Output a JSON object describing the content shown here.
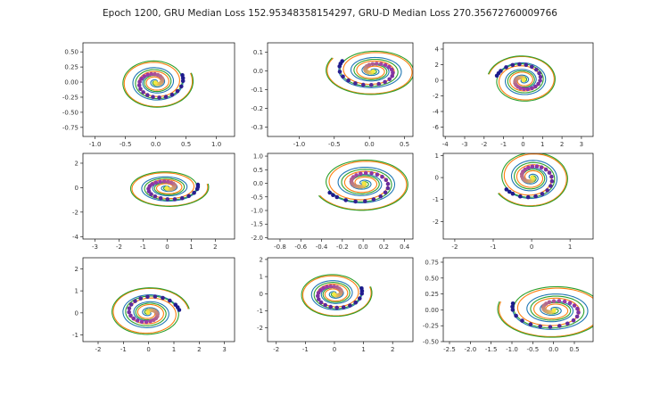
{
  "figure": {
    "title": "Epoch 1200, GRU Median Loss 152.95348358154297, GRU-D Median Loss 270.35672760009766"
  },
  "colors": {
    "truth": "#1f77b4",
    "gru": "#ff7f0e",
    "grud": "#2ca02c",
    "points_start": "#1a1a8c",
    "points_mid": "#9d3aa8",
    "points_end": "#f4e842"
  },
  "chart_data": [
    {
      "type": "line",
      "panel": "1-1",
      "xlim": [
        -1.2,
        1.3
      ],
      "ylim": [
        -0.9,
        0.65
      ],
      "x_ticks": [
        -1.0,
        -0.5,
        0.0,
        0.5,
        1.0
      ],
      "y_ticks": [
        0.5,
        0.25,
        0.0,
        -0.25,
        -0.5,
        -0.75
      ],
      "x_tick_labels": [
        "-1.0",
        "-0.5",
        "0.0",
        "0.5",
        "1.0"
      ],
      "y_tick_labels": [
        "0.50",
        "0.25",
        "0.00",
        "-0.25",
        "-0.50",
        "-0.75"
      ],
      "spiral": {
        "cx": 0.0,
        "cy": 0.0,
        "a": 1.15,
        "b": 0.82,
        "dir": -1,
        "phase": 0.35
      }
    },
    {
      "type": "line",
      "panel": "1-2",
      "xlim": [
        -1.45,
        0.62
      ],
      "ylim": [
        -0.35,
        0.15
      ],
      "x_ticks": [
        -1.0,
        -0.5,
        0.0,
        0.5
      ],
      "y_ticks": [
        0.1,
        0.0,
        -0.1,
        -0.2,
        -0.3
      ],
      "x_tick_labels": [
        "-1.0",
        "-0.5",
        "0.0",
        "0.5"
      ],
      "y_tick_labels": [
        "0.1",
        "0.0",
        "-0.1",
        "-0.2",
        "-0.3"
      ],
      "spiral": {
        "cx": 0.05,
        "cy": 0.0,
        "a": 1.25,
        "b": 0.25,
        "dir": 1,
        "phase": 2.6
      }
    },
    {
      "type": "line",
      "panel": "1-3",
      "xlim": [
        -4.1,
        3.6
      ],
      "ylim": [
        -7.2,
        4.8
      ],
      "x_ticks": [
        -4,
        -3,
        -2,
        -1,
        0,
        1,
        2,
        3
      ],
      "y_ticks": [
        4,
        2,
        0,
        -2,
        -4,
        -6
      ],
      "x_tick_labels": [
        "-4",
        "-3",
        "-2",
        "-1",
        "0",
        "1",
        "2",
        "3"
      ],
      "y_tick_labels": [
        "4",
        "2",
        "0",
        "-2",
        "-4",
        "-6"
      ],
      "spiral": {
        "cx": 0.0,
        "cy": 0.0,
        "a": 3.4,
        "b": 6.0,
        "dir": -1,
        "phase": 2.9
      }
    },
    {
      "type": "line",
      "panel": "2-1",
      "xlim": [
        -3.5,
        2.8
      ],
      "ylim": [
        -4.2,
        2.8
      ],
      "x_ticks": [
        -3,
        -2,
        -1,
        0,
        1,
        2
      ],
      "y_ticks": [
        2,
        0,
        -2,
        -4
      ],
      "x_tick_labels": [
        "-3",
        "-2",
        "-1",
        "0",
        "1",
        "2"
      ],
      "y_tick_labels": [
        "2",
        "0",
        "-2",
        "-4"
      ],
      "spiral": {
        "cx": 0.0,
        "cy": 0.0,
        "a": 3.2,
        "b": 3.0,
        "dir": -1,
        "phase": 0.2
      }
    },
    {
      "type": "line",
      "panel": "2-2",
      "xlim": [
        -0.92,
        0.48
      ],
      "ylim": [
        -2.05,
        1.1
      ],
      "x_ticks": [
        -0.8,
        -0.6,
        -0.4,
        -0.2,
        0.0,
        0.2,
        0.4
      ],
      "y_ticks": [
        1.0,
        0.5,
        0.0,
        -0.5,
        -1.0,
        -1.5,
        -2.0
      ],
      "x_tick_labels": [
        "-0.8",
        "-0.6",
        "-0.4",
        "-0.2",
        "0.0",
        "0.2",
        "0.4"
      ],
      "y_tick_labels": [
        "1.0",
        "0.5",
        "0.0",
        "-0.5",
        "-1.0",
        "-1.5",
        "-2.0"
      ],
      "spiral": {
        "cx": 0.0,
        "cy": 0.0,
        "a": 0.88,
        "b": 1.9,
        "dir": 1,
        "phase": 3.6
      }
    },
    {
      "type": "line",
      "panel": "2-3",
      "xlim": [
        -2.3,
        1.6
      ],
      "ylim": [
        -2.8,
        1.1
      ],
      "x_ticks": [
        -2,
        -1,
        0,
        1
      ],
      "y_ticks": [
        1,
        0,
        -1,
        -2
      ],
      "x_tick_labels": [
        "-2",
        "-1",
        "0",
        "1"
      ],
      "y_tick_labels": [
        "1",
        "0",
        "-1",
        "-2"
      ],
      "spiral": {
        "cx": 0.0,
        "cy": 0.0,
        "a": 1.9,
        "b": 2.5,
        "dir": 1,
        "phase": 3.7
      }
    },
    {
      "type": "line",
      "panel": "3-1",
      "xlim": [
        -2.6,
        3.4
      ],
      "ylim": [
        -1.3,
        2.5
      ],
      "x_ticks": [
        -2,
        -1,
        0,
        1,
        2,
        3
      ],
      "y_ticks": [
        2,
        1,
        0,
        -1
      ],
      "x_tick_labels": [
        "-2",
        "-1",
        "0",
        "1",
        "2",
        "3"
      ],
      "y_tick_labels": [
        "2",
        "1",
        "0",
        "-1"
      ],
      "spiral": {
        "cx": 0.0,
        "cy": 0.0,
        "a": 3.0,
        "b": 2.2,
        "dir": 1,
        "phase": 0.15
      }
    },
    {
      "type": "line",
      "panel": "3-2",
      "xlim": [
        -2.3,
        2.7
      ],
      "ylim": [
        -2.8,
        2.1
      ],
      "x_ticks": [
        -2,
        -1,
        0,
        1,
        2
      ],
      "y_ticks": [
        2,
        1,
        0,
        -1,
        -2
      ],
      "x_tick_labels": [
        "-2",
        "-1",
        "0",
        "1",
        "2"
      ],
      "y_tick_labels": [
        "2",
        "1",
        "0",
        "-1",
        "-2"
      ],
      "spiral": {
        "cx": 0.0,
        "cy": 0.0,
        "a": 2.4,
        "b": 2.6,
        "dir": -1,
        "phase": 0.3
      }
    },
    {
      "type": "line",
      "panel": "3-3",
      "xlim": [
        -2.65,
        0.95
      ],
      "ylim": [
        -0.5,
        0.82
      ],
      "x_ticks": [
        -2.5,
        -2.0,
        -1.5,
        -1.0,
        -0.5,
        0.0,
        0.5
      ],
      "y_ticks": [
        0.75,
        0.5,
        0.25,
        0.0,
        -0.25,
        -0.5
      ],
      "x_tick_labels": [
        "-2.5",
        "-2.0",
        "-1.5",
        "-1.0",
        "-0.5",
        "0.0",
        "0.5"
      ],
      "y_tick_labels": [
        "0.75",
        "0.50",
        "0.25",
        "0.00",
        "-0.25",
        "-0.50"
      ],
      "spiral": {
        "cx": 0.0,
        "cy": 0.0,
        "a": 2.5,
        "b": 0.85,
        "dir": 1,
        "phase": 2.85
      }
    }
  ]
}
